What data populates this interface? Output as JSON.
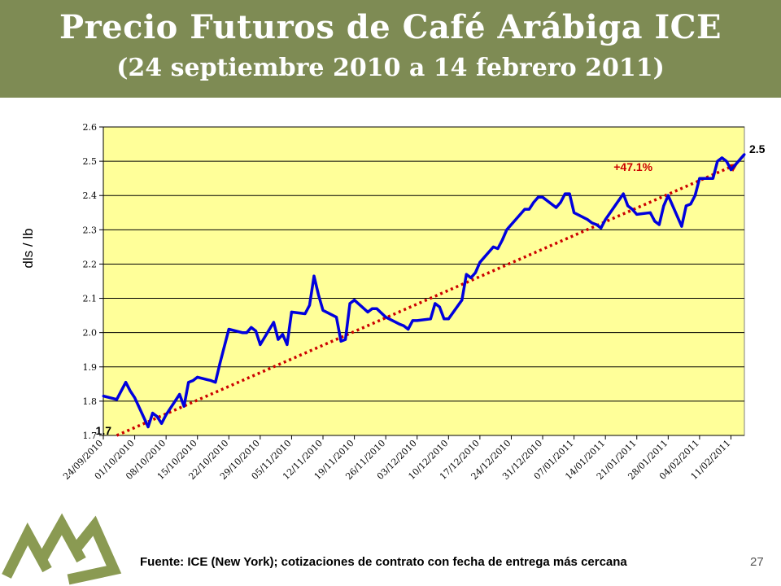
{
  "header": {
    "title": "Precio Futuros de Café Arábiga ICE",
    "subtitle": "(24 septiembre 2010 a 14 febrero 2011)"
  },
  "footer": {
    "source": "Fuente: ICE (New York); cotizaciones de contrato con fecha de entrega más cercana",
    "page_number": "27"
  },
  "colors": {
    "header_bg": "#7e8b54",
    "plot_bg": "#ffff99",
    "series": "#0000dd",
    "trend": "#cc0000",
    "logo": "#8a9a52"
  },
  "chart_data": {
    "type": "line",
    "ylabel": "dls / lb",
    "xlabel": "",
    "ylim": [
      1.7,
      2.6
    ],
    "yticks": [
      "1.7",
      "1.8",
      "1.9",
      "2.0",
      "2.1",
      "2.2",
      "2.3",
      "2.4",
      "2.5",
      "2.6"
    ],
    "grid": true,
    "xtick_labels": [
      "24/09/2010",
      "01/10/2010",
      "08/10/2010",
      "15/10/2010",
      "22/10/2010",
      "29/10/2010",
      "05/11/2010",
      "12/11/2010",
      "19/11/2010",
      "26/11/2010",
      "03/12/2010",
      "10/12/2010",
      "17/12/2010",
      "24/12/2010",
      "31/12/2010",
      "07/01/2011",
      "14/01/2011",
      "21/01/2011",
      "28/01/2011",
      "04/02/2011",
      "11/02/2011"
    ],
    "x_start": "24/09/2010",
    "x_end": "14/02/2011",
    "series": [
      {
        "name": "",
        "x": [
          "24/09/2010",
          "27/09/2010",
          "28/09/2010",
          "29/09/2010",
          "30/09/2010",
          "01/10/2010",
          "04/10/2010",
          "05/10/2010",
          "06/10/2010",
          "07/10/2010",
          "08/10/2010",
          "11/10/2010",
          "12/10/2010",
          "13/10/2010",
          "14/10/2010",
          "15/10/2010",
          "18/10/2010",
          "19/10/2010",
          "20/10/2010",
          "21/10/2010",
          "22/10/2010",
          "25/10/2010",
          "26/10/2010",
          "27/10/2010",
          "28/10/2010",
          "29/10/2010",
          "01/11/2010",
          "02/11/2010",
          "03/11/2010",
          "04/11/2010",
          "05/11/2010",
          "08/11/2010",
          "09/11/2010",
          "10/11/2010",
          "11/11/2010",
          "12/11/2010",
          "15/11/2010",
          "16/11/2010",
          "17/11/2010",
          "18/11/2010",
          "19/11/2010",
          "22/11/2010",
          "23/11/2010",
          "24/11/2010",
          "26/11/2010",
          "29/11/2010",
          "30/11/2010",
          "01/12/2010",
          "02/12/2010",
          "03/12/2010",
          "06/12/2010",
          "07/12/2010",
          "08/12/2010",
          "09/12/2010",
          "10/12/2010",
          "13/12/2010",
          "14/12/2010",
          "15/12/2010",
          "16/12/2010",
          "17/12/2010",
          "20/12/2010",
          "21/12/2010",
          "22/12/2010",
          "23/12/2010",
          "27/12/2010",
          "28/12/2010",
          "29/12/2010",
          "30/12/2010",
          "31/12/2010",
          "03/01/2011",
          "04/01/2011",
          "05/01/2011",
          "06/01/2011",
          "07/01/2011",
          "10/01/2011",
          "11/01/2011",
          "12/01/2011",
          "13/01/2011",
          "14/01/2011",
          "18/01/2011",
          "19/01/2011",
          "20/01/2011",
          "21/01/2011",
          "24/01/2011",
          "25/01/2011",
          "26/01/2011",
          "27/01/2011",
          "28/01/2011",
          "31/01/2011",
          "01/02/2011",
          "02/02/2011",
          "03/02/2011",
          "04/02/2011",
          "07/02/2011",
          "08/02/2011",
          "09/02/2011",
          "10/02/2011",
          "11/02/2011",
          "14/02/2011"
        ],
        "values": [
          1.815,
          1.805,
          1.83,
          1.855,
          1.83,
          1.81,
          1.725,
          1.765,
          1.755,
          1.735,
          1.76,
          1.82,
          1.785,
          1.855,
          1.86,
          1.87,
          1.86,
          1.855,
          1.91,
          1.96,
          2.01,
          2.0,
          2.0,
          2.015,
          2.005,
          1.965,
          2.03,
          1.98,
          1.995,
          1.965,
          2.06,
          2.055,
          2.08,
          2.165,
          2.11,
          2.065,
          2.045,
          1.975,
          1.98,
          2.085,
          2.095,
          2.06,
          2.07,
          2.07,
          2.045,
          2.025,
          2.02,
          2.01,
          2.035,
          2.035,
          2.04,
          2.085,
          2.075,
          2.04,
          2.04,
          2.095,
          2.17,
          2.16,
          2.175,
          2.205,
          2.25,
          2.245,
          2.27,
          2.3,
          2.36,
          2.36,
          2.38,
          2.395,
          2.395,
          2.365,
          2.38,
          2.405,
          2.405,
          2.35,
          2.33,
          2.32,
          2.315,
          2.305,
          2.33,
          2.405,
          2.37,
          2.36,
          2.345,
          2.35,
          2.325,
          2.315,
          2.37,
          2.4,
          2.31,
          2.37,
          2.375,
          2.4,
          2.45,
          2.45,
          2.5,
          2.51,
          2.5,
          2.475,
          2.52
        ]
      }
    ],
    "trend": {
      "from": {
        "x": "27/09/2010",
        "y": 1.7
      },
      "to": {
        "x": "14/02/2011",
        "y": 2.5
      }
    },
    "annotations": [
      {
        "text": "1.7",
        "x": "27/09/2010",
        "y": 1.7
      },
      {
        "text": "2.5",
        "x": "14/02/2011",
        "y": 2.5
      },
      {
        "text": "+47.1%",
        "x": "14/01/2011",
        "y": 2.5
      }
    ]
  }
}
